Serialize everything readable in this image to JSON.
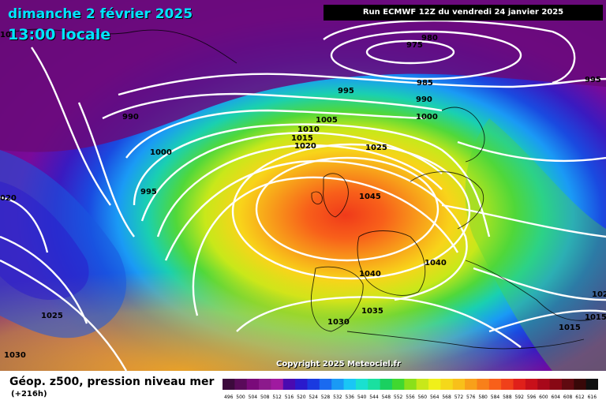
{
  "header": {
    "date": "dimanche 2 février 2025",
    "time": "13:00 locale",
    "run": "Run ECMWF 12Z du vendredi 24 janvier 2025"
  },
  "footer": {
    "parameter": "Géop. z500, pression niveau mer",
    "lead": "(+216h)",
    "copyright": "Copyright 2025 Meteociel.fr"
  },
  "isobar_labels": [
    "980",
    "975",
    "985",
    "995",
    "995",
    "990",
    "1000",
    "990",
    "1005",
    "1010",
    "1015",
    "1020",
    "1025",
    "1000",
    "995",
    "020",
    "1045",
    "1040",
    "1040",
    "1035",
    "1030",
    "1025",
    "1030",
    "1015",
    "1015",
    "102",
    "101"
  ],
  "legend": {
    "ticks": [
      "496",
      "500",
      "504",
      "508",
      "512",
      "516",
      "520",
      "524",
      "528",
      "532",
      "536",
      "540",
      "544",
      "548",
      "552",
      "556",
      "560",
      "564",
      "568",
      "572",
      "576",
      "580",
      "584",
      "588",
      "592",
      "596",
      "600",
      "604",
      "608",
      "612",
      "616"
    ],
    "colors": [
      "#3c0a3c",
      "#5a0a5a",
      "#7a0a7a",
      "#8c1a8c",
      "#a01aa0",
      "#4a0ab0",
      "#2a1acc",
      "#1a3ae0",
      "#1a6af0",
      "#1a9af5",
      "#1ac6f5",
      "#1ae0d0",
      "#1ae0a0",
      "#1ad060",
      "#40d830",
      "#8ae01a",
      "#c8e81a",
      "#f0f01a",
      "#f5d81a",
      "#f8c01a",
      "#f8a01a",
      "#f8801a",
      "#f8601a",
      "#f0401a",
      "#e0201a",
      "#c8101a",
      "#a8081a",
      "#880814",
      "#600a10",
      "#380808",
      "#101010"
    ]
  }
}
